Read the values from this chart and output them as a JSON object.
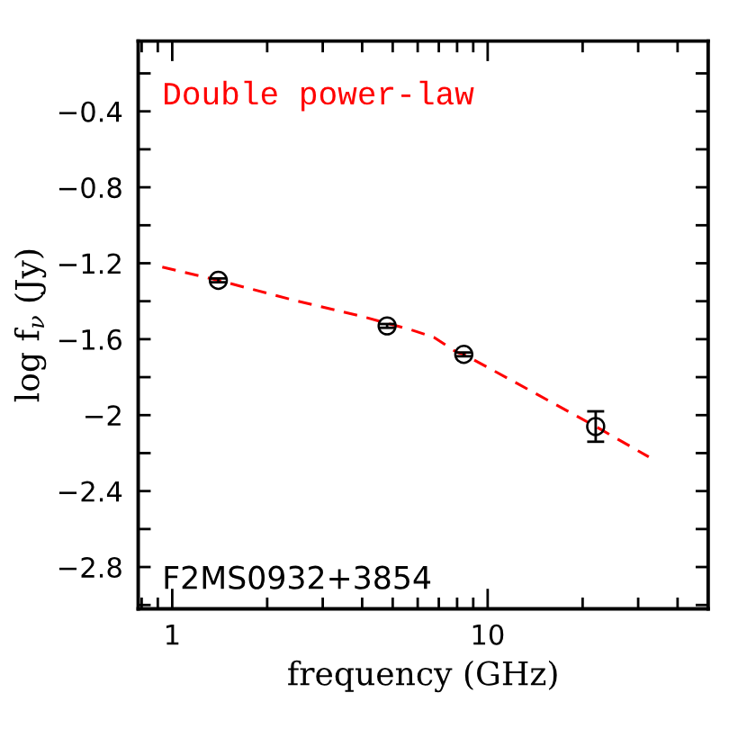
{
  "chart_data": {
    "type": "scatter",
    "xlabel": "frequency (GHz)",
    "ylabel": "log f$_{ν}$ (Jy)",
    "log": "x",
    "legend": "top left",
    "marker": "circle",
    "xlim": [
      0.78,
      50
    ],
    "xticks": [
      {
        "value": 0.8,
        "label": null
      },
      {
        "value": 0.9,
        "label": null
      },
      1,
      {
        "value": 2,
        "label": null
      },
      {
        "value": 3,
        "label": null
      },
      {
        "value": 4,
        "label": null
      },
      {
        "value": 5,
        "label": null
      },
      {
        "value": 6,
        "label": null
      },
      {
        "value": 7,
        "label": null
      },
      {
        "value": 8,
        "label": null
      },
      {
        "value": 9,
        "label": null
      },
      10,
      {
        "value": 20,
        "label": null
      },
      {
        "value": 30,
        "label": null
      },
      {
        "value": 40,
        "label": null
      }
    ],
    "ylim": [
      -3.02,
      -0.03
    ],
    "yticks": [
      {
        "value": -0.2,
        "label": null
      },
      {
        "value": -0.4,
        "label": "−0.4"
      },
      {
        "value": -0.6,
        "label": null
      },
      {
        "value": -0.8,
        "label": "−0.8"
      },
      {
        "value": -1.0,
        "label": null
      },
      {
        "value": -1.2,
        "label": "−1.2"
      },
      {
        "value": -1.4,
        "label": null
      },
      {
        "value": -1.6,
        "label": "−1.6"
      },
      {
        "value": -1.8,
        "label": null
      },
      {
        "value": -2.0,
        "label": "−2"
      },
      {
        "value": -2.2,
        "label": null
      },
      {
        "value": -2.4,
        "label": "−2.4"
      },
      {
        "value": -2.6,
        "label": null
      },
      {
        "value": -2.8,
        "label": "−2.8"
      },
      {
        "value": -3.0,
        "label": null
      }
    ],
    "annotations": [
      "F2MS0932+3854"
    ],
    "series": [
      {
        "color": "#000000",
        "x": [
          1.4,
          4.8,
          8.4,
          22
        ],
        "values": [
          -1.29,
          -1.53,
          -1.68,
          -2.06
        ],
        "errors": [
          0.01,
          0.01,
          0.01,
          0.08
        ]
      },
      {
        "type": "line",
        "name": "Double power-law",
        "color": "#ff0000",
        "line_style": "dashed",
        "marker": "none",
        "x": [
          0.93,
          1.4,
          2.5,
          4,
          5.7,
          6.75,
          8.0,
          8.4,
          12,
          18,
          22,
          32.4
        ],
        "values": [
          -1.22,
          -1.29,
          -1.4,
          -1.48,
          -1.55,
          -1.59,
          -1.67,
          -1.68,
          -1.82,
          -1.98,
          -2.06,
          -2.22
        ]
      }
    ]
  }
}
